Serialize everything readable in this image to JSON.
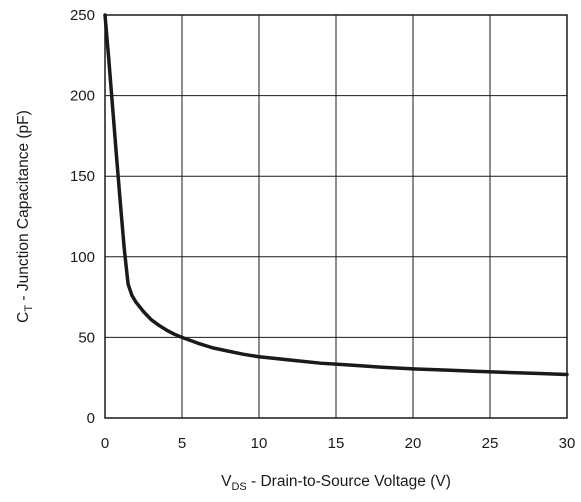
{
  "chart_data": {
    "type": "line",
    "title": "",
    "xlabel": {
      "main": "V",
      "sub": "DS",
      "rest": " - Drain-to-Source Voltage (V)"
    },
    "ylabel": {
      "main": "C",
      "sub": "T",
      "rest": " - Junction Capacitance (pF)"
    },
    "xlim": [
      0,
      30
    ],
    "ylim": [
      0,
      250
    ],
    "xticks": [
      0,
      5,
      10,
      15,
      20,
      25,
      30
    ],
    "yticks": [
      0,
      50,
      100,
      150,
      200,
      250
    ],
    "grid": true,
    "series_color": "#1a1a1a",
    "series": [
      {
        "x": [
          0,
          0.25,
          0.5,
          0.75,
          1.0,
          1.25,
          1.5,
          1.75,
          2.0,
          2.5,
          3.0,
          3.5,
          4.0,
          4.5,
          5.0,
          6.0,
          7.0,
          8.0,
          9.0,
          10.0,
          12.0,
          14.0,
          16.0,
          18.0,
          20.0,
          22.0,
          24.0,
          26.0,
          28.0,
          30.0
        ],
        "y": [
          250,
          222,
          192,
          162,
          133,
          105,
          83,
          76,
          72,
          66,
          61,
          57.5,
          54.5,
          52,
          50,
          46.5,
          43.5,
          41.5,
          39.5,
          38,
          36,
          34,
          32.8,
          31.5,
          30.5,
          29.8,
          29,
          28.3,
          27.7,
          27
        ]
      }
    ]
  }
}
